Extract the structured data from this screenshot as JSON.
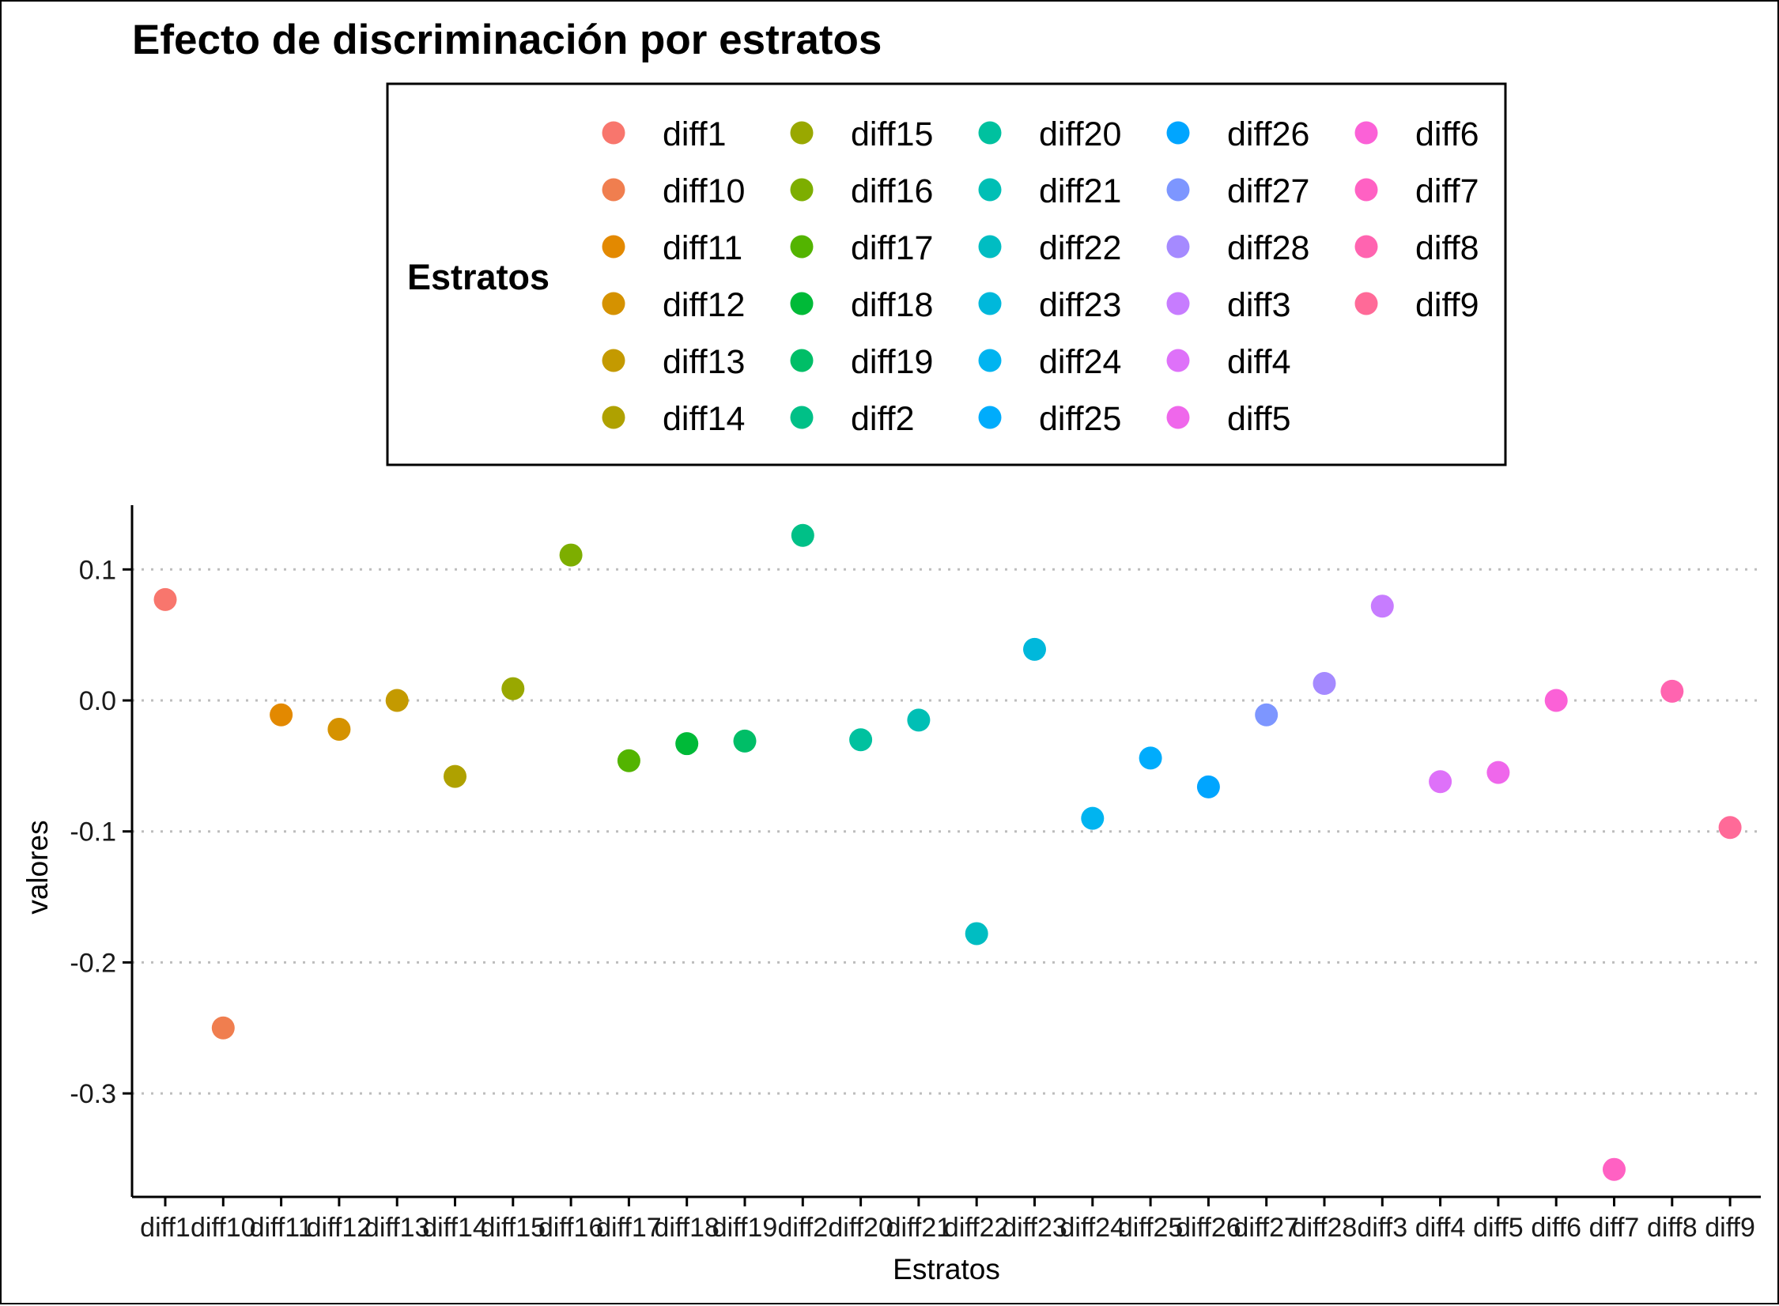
{
  "chart_data": {
    "type": "scatter",
    "title": "Efecto de discriminación por estratos",
    "xlabel": "Estratos",
    "ylabel": "valores",
    "ylim": [
      -0.37,
      0.15
    ],
    "yticks": [
      0.1,
      0.0,
      -0.1,
      -0.2,
      -0.3
    ],
    "ytick_labels": [
      "0.1",
      "0.0",
      "-0.1",
      "-0.2",
      "-0.3"
    ],
    "grid": "horizontal-dotted",
    "legend": {
      "title": "Estratos",
      "placement": "top",
      "columns": 5,
      "rows": 6
    },
    "categories": [
      "diff1",
      "diff10",
      "diff11",
      "diff12",
      "diff13",
      "diff14",
      "diff15",
      "diff16",
      "diff17",
      "diff18",
      "diff19",
      "diff2",
      "diff20",
      "diff21",
      "diff22",
      "diff23",
      "diff24",
      "diff25",
      "diff26",
      "diff27",
      "diff28",
      "diff3",
      "diff4",
      "diff5",
      "diff6",
      "diff7",
      "diff8",
      "diff9"
    ],
    "values": [
      0.077,
      -0.25,
      -0.011,
      -0.022,
      0.0,
      -0.058,
      0.009,
      0.111,
      -0.046,
      -0.033,
      -0.031,
      0.126,
      -0.03,
      -0.015,
      -0.178,
      0.039,
      -0.09,
      -0.044,
      -0.066,
      -0.011,
      0.013,
      0.072,
      -0.062,
      -0.055,
      0.0,
      -0.358,
      0.007,
      -0.097
    ],
    "colors": [
      "#F8766D",
      "#F07E4F",
      "#E38900",
      "#D59200",
      "#C49A00",
      "#AFA100",
      "#99A800",
      "#7DAE00",
      "#53B400",
      "#00BA38",
      "#00BE67",
      "#00C087",
      "#00C19F",
      "#00BFB5",
      "#00BDC2",
      "#00B8DB",
      "#00B4F0",
      "#00ACFC",
      "#00A5FF",
      "#7D96FF",
      "#A58AFF",
      "#C77CFF",
      "#DE71F9",
      "#EF67EB",
      "#FB61D7",
      "#FF61C3",
      "#FF64B0",
      "#FF6A98"
    ]
  }
}
